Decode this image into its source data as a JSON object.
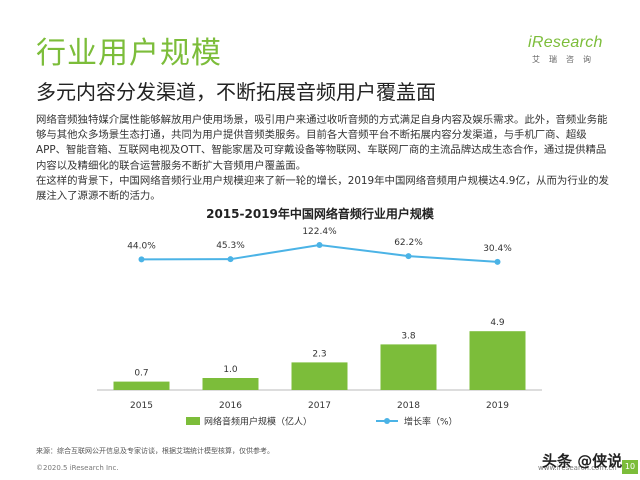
{
  "header": {
    "title": "行业用户规模",
    "subtitle": "多元内容分发渠道，不断拓展音频用户覆盖面",
    "logo_main": "iResearch",
    "logo_sub": "艾瑞咨询"
  },
  "body": {
    "paragraph1": "网络音频独特媒介属性能够解放用户使用场景，吸引用户来通过收听音频的方式满足自身内容及娱乐需求。此外，音频业务能够与其他众多场景生态打通，共同为用户提供音频类服务。目前各大音频平台不断拓展内容分发渠道，与手机厂商、超级APP、智能音箱、互联网电视及OTT、智能家居及可穿戴设备等物联网、车联网厂商的主流品牌达成生态合作，通过提供精品内容以及精细化的联合运营服务不断扩大音频用户覆盖面。",
    "paragraph2": "在这样的背景下，中国网络音频行业用户规模迎来了新一轮的增长，2019年中国网络音频用户规模达4.9亿，从而为行业的发展注入了源源不断的活力。"
  },
  "chart_data": {
    "type": "bar",
    "title": "2015-2019年中国网络音频行业用户规模",
    "categories": [
      "2015",
      "2016",
      "2017",
      "2018",
      "2019"
    ],
    "series": [
      {
        "name": "网络音频用户规模（亿人）",
        "type": "bar",
        "values": [
          0.7,
          1.0,
          2.3,
          3.8,
          4.9
        ],
        "labels": [
          "0.7",
          "1.0",
          "2.3",
          "3.8",
          "4.9"
        ],
        "color": "#7cbd3a"
      },
      {
        "name": "增长率（%）",
        "type": "line",
        "values": [
          44.0,
          45.3,
          122.4,
          62.2,
          30.4
        ],
        "labels": [
          "44.0%",
          "45.3%",
          "122.4%",
          "62.2%",
          "30.4%"
        ],
        "color": "#4bb3e6"
      }
    ],
    "legend_position": "bottom",
    "grid": false
  },
  "footer": {
    "source": "来源：综合互联网公开信息及专家访谈，根据艾瑞统计模型核算，仅供参考。",
    "copyright": "©2020.5 iResearch Inc.",
    "website": "www.iresearch.com.cn",
    "page_number": "10",
    "watermark": "头条 @侠说"
  }
}
